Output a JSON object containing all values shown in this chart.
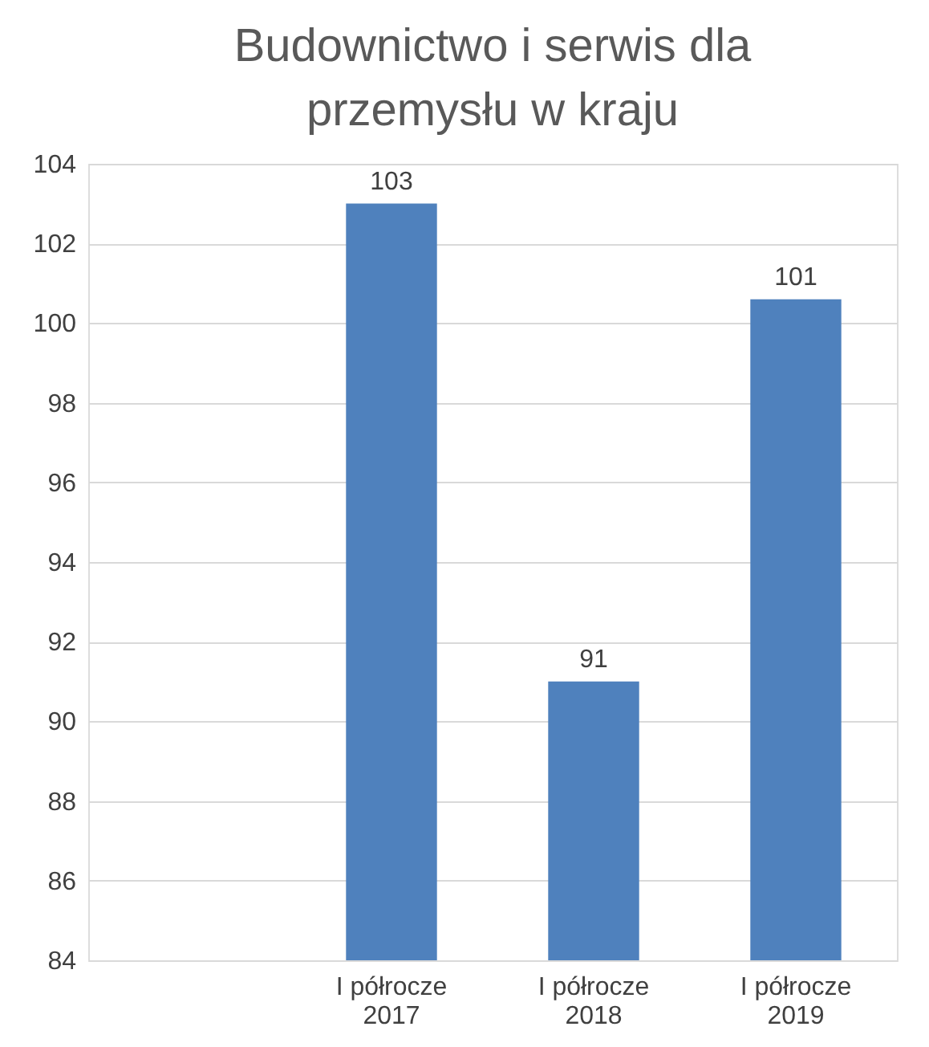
{
  "chart_data": {
    "type": "bar",
    "title": [
      "Budownictwo i serwis dla",
      "przemysłu w kraju"
    ],
    "categories": [
      null,
      "I półrocze 2017",
      "I półrocze 2018",
      "I półrocze 2019"
    ],
    "values": [
      null,
      103,
      91,
      100.6
    ],
    "value_labels": [
      null,
      "103",
      "91",
      "101"
    ],
    "color": "#4f81bd",
    "ylim": [
      84,
      104
    ],
    "yticks": [
      84,
      86,
      88,
      90,
      92,
      94,
      96,
      98,
      100,
      102,
      104
    ],
    "grid": "y"
  }
}
